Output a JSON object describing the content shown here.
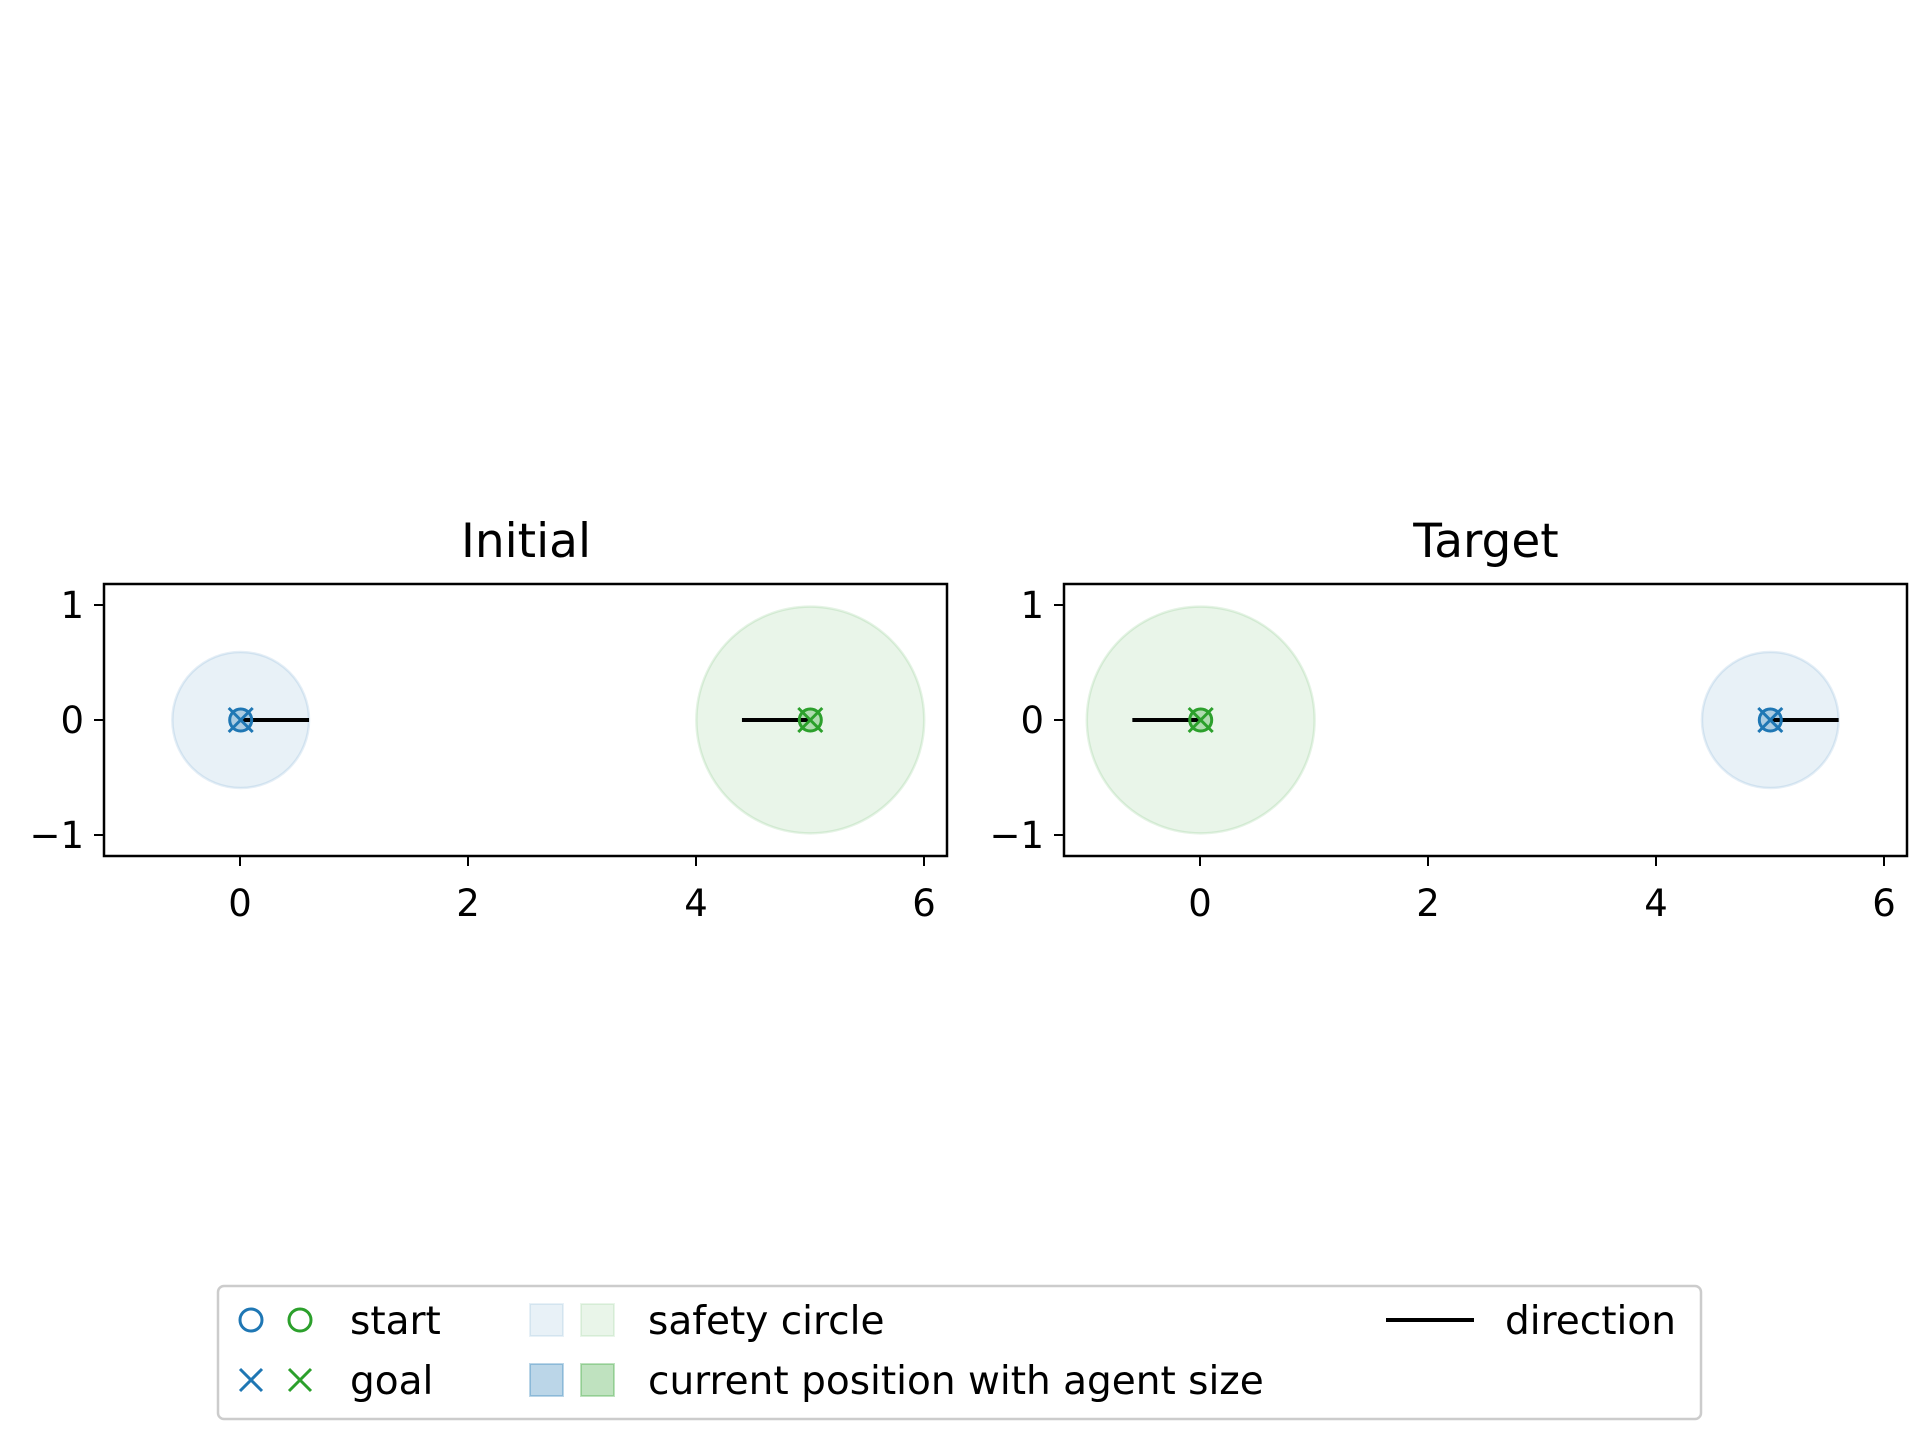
{
  "chart_data": [
    {
      "type": "scatter",
      "title": "Initial",
      "xlim": [
        -1.2,
        6.2
      ],
      "ylim": [
        -1.2,
        1.2
      ],
      "xticks": [
        0,
        2,
        4,
        6
      ],
      "yticks": [
        -1,
        0,
        1
      ],
      "xtick_labels": [
        "0",
        "2",
        "4",
        "6"
      ],
      "ytick_labels": [
        "−1",
        "0",
        "1"
      ],
      "grid": false,
      "agents": [
        {
          "color": "#1f77b4",
          "start": [
            0,
            0
          ],
          "goal": [
            0,
            0
          ],
          "position": [
            0,
            0
          ],
          "safety_radius": 0.6,
          "agent_size": 0.1,
          "direction_end": [
            0.6,
            0
          ]
        },
        {
          "color": "#2ca02c",
          "start": [
            5,
            0
          ],
          "goal": [
            5,
            0
          ],
          "position": [
            5,
            0
          ],
          "safety_radius": 1.0,
          "agent_size": 0.1,
          "direction_end": [
            4.4,
            0
          ]
        }
      ]
    },
    {
      "type": "scatter",
      "title": "Target",
      "xlim": [
        -1.2,
        6.2
      ],
      "ylim": [
        -1.2,
        1.2
      ],
      "xticks": [
        0,
        2,
        4,
        6
      ],
      "yticks": [
        -1,
        0,
        1
      ],
      "xtick_labels": [
        "0",
        "2",
        "4",
        "6"
      ],
      "ytick_labels": [
        "−1",
        "0",
        "1"
      ],
      "grid": false,
      "agents": [
        {
          "color": "#2ca02c",
          "start": [
            0,
            0
          ],
          "goal": [
            0,
            0
          ],
          "position": [
            0,
            0
          ],
          "safety_radius": 1.0,
          "agent_size": 0.1,
          "direction_end": [
            -0.6,
            0
          ]
        },
        {
          "color": "#1f77b4",
          "start": [
            5,
            0
          ],
          "goal": [
            5,
            0
          ],
          "position": [
            5,
            0
          ],
          "safety_radius": 0.6,
          "agent_size": 0.1,
          "direction_end": [
            5.6,
            0
          ]
        }
      ]
    }
  ],
  "legend": {
    "placement": "lower-center",
    "entries": [
      {
        "label": "start",
        "kind": "circle-marker",
        "colors": [
          "#1f77b4",
          "#2ca02c"
        ]
      },
      {
        "label": "goal",
        "kind": "x-marker",
        "colors": [
          "#1f77b4",
          "#2ca02c"
        ]
      },
      {
        "label": "safety circle",
        "kind": "light-patch",
        "colors": [
          "#1f77b4",
          "#2ca02c"
        ]
      },
      {
        "label": "current position with agent size",
        "kind": "dark-patch",
        "colors": [
          "#1f77b4",
          "#2ca02c"
        ]
      },
      {
        "label": "direction",
        "kind": "line",
        "colors": [
          "#000000"
        ]
      }
    ]
  }
}
